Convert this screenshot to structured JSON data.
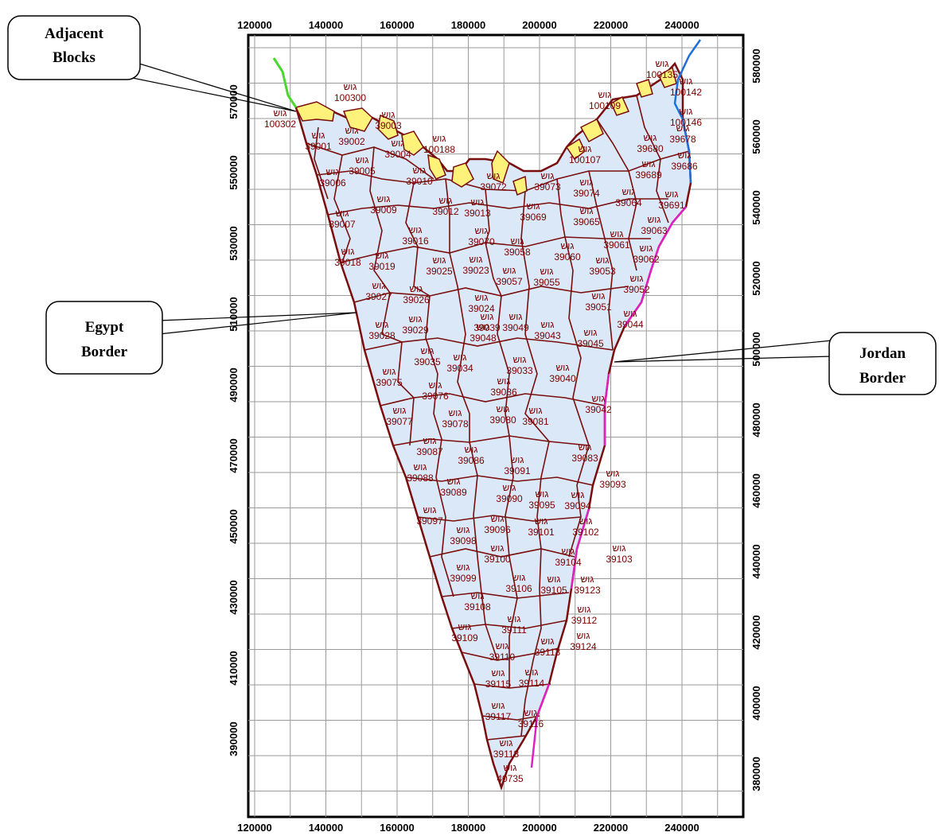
{
  "map": {
    "x_ticks": [
      "120000",
      "140000",
      "160000",
      "180000",
      "200000",
      "220000",
      "240000"
    ],
    "y_ticks_left": [
      "570000",
      "550000",
      "530000",
      "510000",
      "490000",
      "470000",
      "450000",
      "430000",
      "410000",
      "390000"
    ],
    "y_ticks_right": [
      "580000",
      "560000",
      "540000",
      "520000",
      "500000",
      "480000",
      "460000",
      "440000",
      "420000",
      "400000",
      "380000"
    ],
    "block_prefix": "גוש",
    "blocks": [
      {
        "id": "100135"
      },
      {
        "id": "100142"
      },
      {
        "id": "100146"
      },
      {
        "id": "100300"
      },
      {
        "id": "100302"
      },
      {
        "id": "100109"
      },
      {
        "id": "100107"
      },
      {
        "id": "100188"
      },
      {
        "id": "39001"
      },
      {
        "id": "39002"
      },
      {
        "id": "39003"
      },
      {
        "id": "39004"
      },
      {
        "id": "39005"
      },
      {
        "id": "39006"
      },
      {
        "id": "39007"
      },
      {
        "id": "39009"
      },
      {
        "id": "39010"
      },
      {
        "id": "39012"
      },
      {
        "id": "39013"
      },
      {
        "id": "39016"
      },
      {
        "id": "39018"
      },
      {
        "id": "39019"
      },
      {
        "id": "39023"
      },
      {
        "id": "39024"
      },
      {
        "id": "39025"
      },
      {
        "id": "39026"
      },
      {
        "id": "39027"
      },
      {
        "id": "39028"
      },
      {
        "id": "39029"
      },
      {
        "id": "39033"
      },
      {
        "id": "39034"
      },
      {
        "id": "39035"
      },
      {
        "id": "39036"
      },
      {
        "id": "39039"
      },
      {
        "id": "39040"
      },
      {
        "id": "39042"
      },
      {
        "id": "39043"
      },
      {
        "id": "39044"
      },
      {
        "id": "39045"
      },
      {
        "id": "39048"
      },
      {
        "id": "39049"
      },
      {
        "id": "39051"
      },
      {
        "id": "39052"
      },
      {
        "id": "39053"
      },
      {
        "id": "39055"
      },
      {
        "id": "39057"
      },
      {
        "id": "39058"
      },
      {
        "id": "39060"
      },
      {
        "id": "39061"
      },
      {
        "id": "39062"
      },
      {
        "id": "39063"
      },
      {
        "id": "39064"
      },
      {
        "id": "39065"
      },
      {
        "id": "39069"
      },
      {
        "id": "39070"
      },
      {
        "id": "39072"
      },
      {
        "id": "39073"
      },
      {
        "id": "39074"
      },
      {
        "id": "39075"
      },
      {
        "id": "39076"
      },
      {
        "id": "39077"
      },
      {
        "id": "39078"
      },
      {
        "id": "39080"
      },
      {
        "id": "39081"
      },
      {
        "id": "39083"
      },
      {
        "id": "39086"
      },
      {
        "id": "39087"
      },
      {
        "id": "39088"
      },
      {
        "id": "39089"
      },
      {
        "id": "39090"
      },
      {
        "id": "39091"
      },
      {
        "id": "39093"
      },
      {
        "id": "39094"
      },
      {
        "id": "39095"
      },
      {
        "id": "39096"
      },
      {
        "id": "39097"
      },
      {
        "id": "39098"
      },
      {
        "id": "39099"
      },
      {
        "id": "39100"
      },
      {
        "id": "39101"
      },
      {
        "id": "39102"
      },
      {
        "id": "39103"
      },
      {
        "id": "39104"
      },
      {
        "id": "39105"
      },
      {
        "id": "39106"
      },
      {
        "id": "39108"
      },
      {
        "id": "39109"
      },
      {
        "id": "39110"
      },
      {
        "id": "39111"
      },
      {
        "id": "39112"
      },
      {
        "id": "39113"
      },
      {
        "id": "39114"
      },
      {
        "id": "39115"
      },
      {
        "id": "39116"
      },
      {
        "id": "39117"
      },
      {
        "id": "39118"
      },
      {
        "id": "39123"
      },
      {
        "id": "39124"
      },
      {
        "id": "39680"
      },
      {
        "id": "39686"
      },
      {
        "id": "39689"
      },
      {
        "id": "39691"
      },
      {
        "id": "40735"
      },
      {
        "id": "39678"
      }
    ]
  },
  "callouts": {
    "adjacent": [
      "Adjacent",
      "Blocks"
    ],
    "egypt": [
      "Egypt",
      "Border"
    ],
    "jordan": [
      "Jordan",
      "Border"
    ]
  },
  "colors": {
    "region_fill": "#dbe8f7",
    "boundary": "#7a0d0d",
    "adjacent_fill": "#fff27a",
    "egypt_border": "#4cd630",
    "jordan_border_north": "#1e6fd9",
    "jordan_border_south": "#e020c0"
  }
}
